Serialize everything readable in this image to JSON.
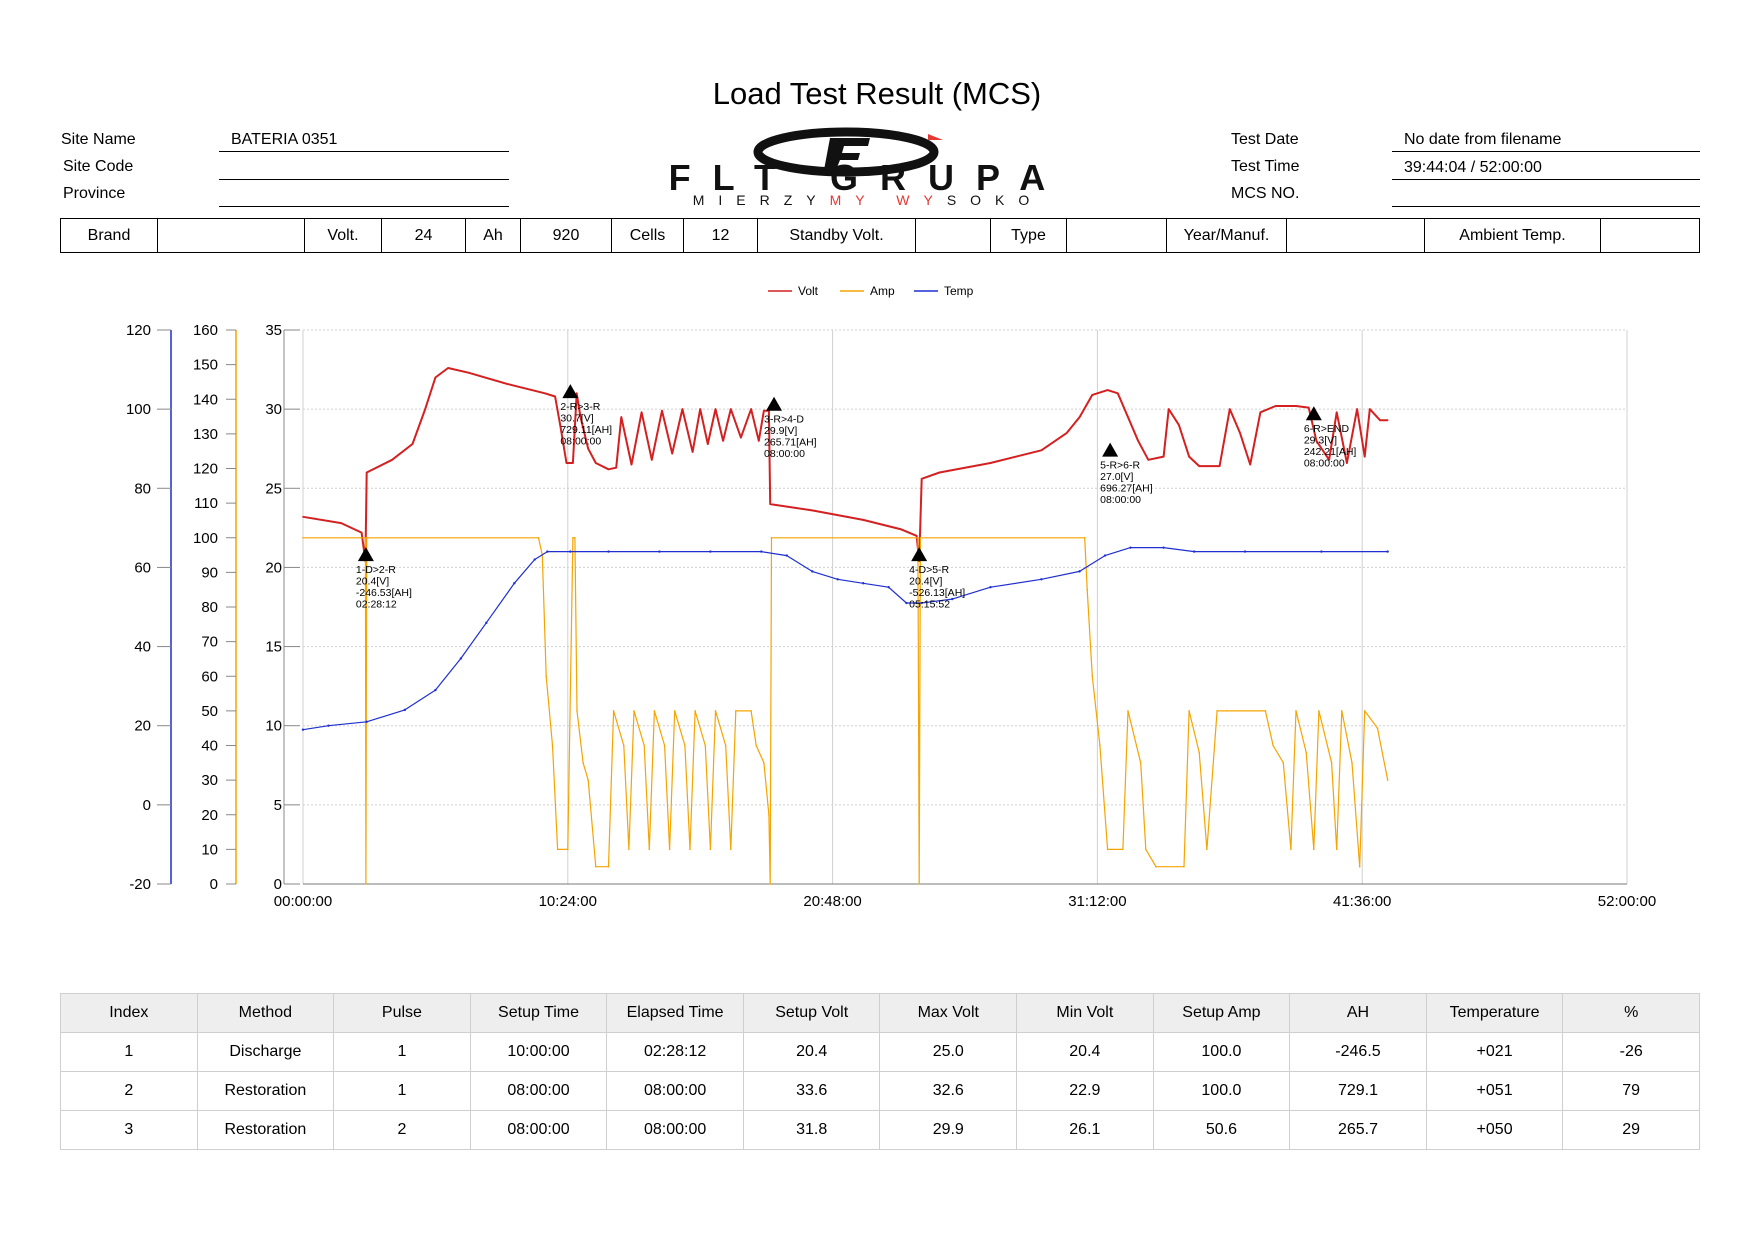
{
  "header": {
    "title": "Load Test Result (MCS)",
    "site_name_label": "Site Name",
    "site_name_value": "BATERIA 0351",
    "site_code_label": "Site Code",
    "site_code_value": "",
    "province_label": "Province",
    "province_value": "",
    "test_date_label": "Test Date",
    "test_date_value": "No date from filename",
    "test_time_label": "Test Time",
    "test_time_value": "39:44:04 / 52:00:00",
    "mcs_no_label": "MCS NO.",
    "mcs_no_value": ""
  },
  "logo": {
    "main": "FLT GRUPA",
    "sub_black_1": "MIERZY",
    "sub_red": "MY WY",
    "sub_black_2": "SOKO",
    "colors": {
      "dark": "#111111",
      "red": "#e53935"
    }
  },
  "spec_row": {
    "brand_label": "Brand",
    "brand_value": "",
    "volt_label": "Volt.",
    "volt_value": "24",
    "ah_label": "Ah",
    "ah_value": "920",
    "cells_label": "Cells",
    "cells_value": "12",
    "standby_label": "Standby Volt.",
    "standby_value": "",
    "type_label": "Type",
    "type_value": "",
    "year_label": "Year/Manuf.",
    "year_value": "",
    "ambient_label": "Ambient Temp.",
    "ambient_value": ""
  },
  "chart_data": {
    "type": "line",
    "legend": [
      "Volt",
      "Amp",
      "Temp"
    ],
    "legend_position": "top-center",
    "colors": {
      "Volt": "#d42020",
      "Amp": "#f5a400",
      "Temp": "#1f2fd0"
    },
    "grid": true,
    "x_unit": "hours",
    "xlim": [
      0,
      52
    ],
    "x_tick_labels": [
      "00:00:00",
      "10:24:00",
      "20:48:00",
      "31:12:00",
      "41:36:00",
      "52:00:00"
    ],
    "volt_axis": {
      "ylim": [
        0,
        35
      ],
      "ticks": [
        0,
        5,
        10,
        15,
        20,
        25,
        30,
        35
      ]
    },
    "amp_axis": {
      "ylim": [
        0,
        160
      ],
      "ticks": [
        0,
        10,
        20,
        30,
        40,
        50,
        60,
        70,
        80,
        90,
        100,
        110,
        120,
        130,
        140,
        150,
        160
      ]
    },
    "temp_axis": {
      "ylim": [
        -20,
        120
      ],
      "ticks": [
        -20,
        0,
        20,
        40,
        60,
        80,
        100,
        120
      ]
    },
    "series": [
      {
        "name": "Volt",
        "points": [
          [
            0,
            23.2
          ],
          [
            1.5,
            22.8
          ],
          [
            2.3,
            22.2
          ],
          [
            2.45,
            20.4
          ],
          [
            2.5,
            26.0
          ],
          [
            3.5,
            26.8
          ],
          [
            4.3,
            27.8
          ],
          [
            4.8,
            30.0
          ],
          [
            5.2,
            32.0
          ],
          [
            5.7,
            32.6
          ],
          [
            6.5,
            32.3
          ],
          [
            8,
            31.6
          ],
          [
            9.5,
            31.0
          ],
          [
            9.9,
            30.8
          ],
          [
            10.1,
            29.0
          ],
          [
            10.35,
            26.6
          ],
          [
            10.6,
            26.6
          ],
          [
            10.75,
            31.0
          ],
          [
            10.9,
            29.5
          ],
          [
            11.2,
            27.5
          ],
          [
            11.5,
            26.6
          ],
          [
            12.0,
            26.2
          ],
          [
            12.3,
            26.3
          ],
          [
            12.5,
            29.5
          ],
          [
            12.9,
            26.5
          ],
          [
            13.3,
            29.8
          ],
          [
            13.7,
            26.8
          ],
          [
            14.1,
            29.9
          ],
          [
            14.5,
            27.2
          ],
          [
            14.9,
            30.0
          ],
          [
            15.3,
            27.3
          ],
          [
            15.6,
            30.0
          ],
          [
            15.9,
            27.8
          ],
          [
            16.2,
            30.0
          ],
          [
            16.5,
            28.0
          ],
          [
            16.8,
            30.0
          ],
          [
            17.2,
            28.2
          ],
          [
            17.6,
            30.0
          ],
          [
            17.9,
            28.0
          ],
          [
            18.1,
            29.9
          ],
          [
            18.3,
            29.9
          ],
          [
            18.35,
            24.0
          ],
          [
            20,
            23.6
          ],
          [
            22,
            23.0
          ],
          [
            23.5,
            22.4
          ],
          [
            24.1,
            22.0
          ],
          [
            24.2,
            20.4
          ],
          [
            24.3,
            25.6
          ],
          [
            25,
            26.0
          ],
          [
            27,
            26.6
          ],
          [
            29,
            27.4
          ],
          [
            30,
            28.5
          ],
          [
            30.5,
            29.5
          ],
          [
            31.0,
            30.9
          ],
          [
            31.6,
            31.2
          ],
          [
            32.0,
            31.0
          ],
          [
            32.4,
            29.5
          ],
          [
            32.8,
            28.0
          ],
          [
            33.2,
            26.8
          ],
          [
            33.8,
            27.0
          ],
          [
            34.0,
            30.0
          ],
          [
            34.4,
            29.0
          ],
          [
            34.8,
            27.0
          ],
          [
            35.2,
            26.4
          ],
          [
            36.0,
            26.4
          ],
          [
            36.4,
            30.0
          ],
          [
            36.8,
            28.5
          ],
          [
            37.2,
            26.5
          ],
          [
            37.6,
            29.8
          ],
          [
            38.2,
            30.2
          ],
          [
            39.0,
            30.2
          ],
          [
            39.5,
            30.1
          ],
          [
            39.8,
            28.0
          ],
          [
            40.3,
            26.8
          ],
          [
            40.6,
            29.8
          ],
          [
            41.0,
            26.6
          ],
          [
            41.4,
            30.0
          ],
          [
            41.7,
            27.0
          ],
          [
            41.9,
            30.0
          ],
          [
            42.3,
            29.3
          ],
          [
            42.6,
            29.3
          ]
        ]
      },
      {
        "name": "Amp",
        "points": [
          [
            0,
            100
          ],
          [
            2.45,
            100
          ],
          [
            2.47,
            0
          ],
          [
            2.5,
            100
          ],
          [
            9.25,
            100
          ],
          [
            9.4,
            95
          ],
          [
            9.55,
            60
          ],
          [
            9.8,
            40
          ],
          [
            10.0,
            10
          ],
          [
            10.4,
            10
          ],
          [
            10.6,
            100
          ],
          [
            10.68,
            100
          ],
          [
            10.76,
            50
          ],
          [
            11.0,
            35
          ],
          [
            11.2,
            30
          ],
          [
            11.5,
            5
          ],
          [
            12.0,
            5
          ],
          [
            12.2,
            50
          ],
          [
            12.6,
            40
          ],
          [
            12.8,
            10
          ],
          [
            13.0,
            50
          ],
          [
            13.4,
            40
          ],
          [
            13.6,
            10
          ],
          [
            13.8,
            50
          ],
          [
            14.2,
            40
          ],
          [
            14.4,
            10
          ],
          [
            14.6,
            50
          ],
          [
            15.0,
            40
          ],
          [
            15.2,
            10
          ],
          [
            15.4,
            50
          ],
          [
            15.8,
            40
          ],
          [
            16.0,
            10
          ],
          [
            16.2,
            50
          ],
          [
            16.6,
            40
          ],
          [
            16.8,
            10
          ],
          [
            17.0,
            50
          ],
          [
            17.6,
            50
          ],
          [
            17.8,
            40
          ],
          [
            18.1,
            35
          ],
          [
            18.3,
            20
          ],
          [
            18.35,
            0
          ],
          [
            18.4,
            100
          ],
          [
            24.15,
            100
          ],
          [
            24.2,
            0
          ],
          [
            24.25,
            100
          ],
          [
            30.7,
            100
          ],
          [
            30.8,
            85
          ],
          [
            31.0,
            60
          ],
          [
            31.3,
            40
          ],
          [
            31.6,
            10
          ],
          [
            32.2,
            10
          ],
          [
            32.4,
            50
          ],
          [
            32.9,
            35
          ],
          [
            33.1,
            10
          ],
          [
            33.5,
            5
          ],
          [
            34.6,
            5
          ],
          [
            34.8,
            50
          ],
          [
            35.2,
            38
          ],
          [
            35.5,
            10
          ],
          [
            35.9,
            50
          ],
          [
            36.3,
            50
          ],
          [
            37.8,
            50
          ],
          [
            38.1,
            40
          ],
          [
            38.5,
            35
          ],
          [
            38.8,
            10
          ],
          [
            39.0,
            50
          ],
          [
            39.4,
            38
          ],
          [
            39.7,
            10
          ],
          [
            39.9,
            50
          ],
          [
            40.4,
            35
          ],
          [
            40.6,
            10
          ],
          [
            40.8,
            50
          ],
          [
            41.2,
            35
          ],
          [
            41.5,
            5
          ],
          [
            41.7,
            50
          ],
          [
            42.2,
            45
          ],
          [
            42.6,
            30
          ]
        ]
      },
      {
        "name": "Temp",
        "points": [
          [
            0,
            19
          ],
          [
            1,
            20
          ],
          [
            2.5,
            21
          ],
          [
            4,
            24
          ],
          [
            5.2,
            29
          ],
          [
            6.2,
            37
          ],
          [
            7.2,
            46
          ],
          [
            8.3,
            56
          ],
          [
            9.1,
            62
          ],
          [
            9.6,
            64
          ],
          [
            10.5,
            64
          ],
          [
            12,
            64
          ],
          [
            14,
            64
          ],
          [
            16,
            64
          ],
          [
            18,
            64
          ],
          [
            19,
            63
          ],
          [
            20,
            59
          ],
          [
            21,
            57
          ],
          [
            22,
            56
          ],
          [
            23.0,
            55
          ],
          [
            23.7,
            51
          ],
          [
            24.3,
            51
          ],
          [
            25.5,
            52
          ],
          [
            27,
            55
          ],
          [
            29,
            57
          ],
          [
            30.5,
            59
          ],
          [
            31.5,
            63
          ],
          [
            32.5,
            65
          ],
          [
            33.8,
            65
          ],
          [
            35,
            64
          ],
          [
            37,
            64
          ],
          [
            40,
            64
          ],
          [
            42.6,
            64
          ]
        ]
      }
    ],
    "annotations": [
      {
        "x": 2.47,
        "y": 20.4,
        "lines": [
          "1-D>2-R",
          "20.4[V]",
          "-246.53[AH]",
          "02:28:12"
        ]
      },
      {
        "x": 10.5,
        "y": 30.7,
        "lines": [
          "2-R>3-R",
          "30.7[V]",
          "729.11[AH]",
          "08:00:00"
        ]
      },
      {
        "x": 18.5,
        "y": 29.9,
        "lines": [
          "3-R>4-D",
          "29.9[V]",
          "265.71[AH]",
          "08:00:00"
        ]
      },
      {
        "x": 24.2,
        "y": 20.4,
        "lines": [
          "4-D>5-R",
          "20.4[V]",
          "-526.13[AH]",
          "05:15:52"
        ]
      },
      {
        "x": 31.7,
        "y": 27.0,
        "lines": [
          "5-R>6-R",
          "27.0[V]",
          "696.27[AH]",
          "08:00:00"
        ]
      },
      {
        "x": 39.7,
        "y": 29.3,
        "lines": [
          "6-R>END",
          "29.3[V]",
          "242.21[AH]",
          "08:00:00"
        ]
      }
    ]
  },
  "results": {
    "columns": [
      "Index",
      "Method",
      "Pulse",
      "Setup Time",
      "Elapsed Time",
      "Setup Volt",
      "Max Volt",
      "Min Volt",
      "Setup Amp",
      "AH",
      "Temperature",
      "%"
    ],
    "rows": [
      [
        "1",
        "Discharge",
        "1",
        "10:00:00",
        "02:28:12",
        "20.4",
        "25.0",
        "20.4",
        "100.0",
        "-246.5",
        "+021",
        "-26"
      ],
      [
        "2",
        "Restoration",
        "1",
        "08:00:00",
        "08:00:00",
        "33.6",
        "32.6",
        "22.9",
        "100.0",
        "729.1",
        "+051",
        "79"
      ],
      [
        "3",
        "Restoration",
        "2",
        "08:00:00",
        "08:00:00",
        "31.8",
        "29.9",
        "26.1",
        "50.6",
        "265.7",
        "+050",
        "29"
      ]
    ]
  }
}
